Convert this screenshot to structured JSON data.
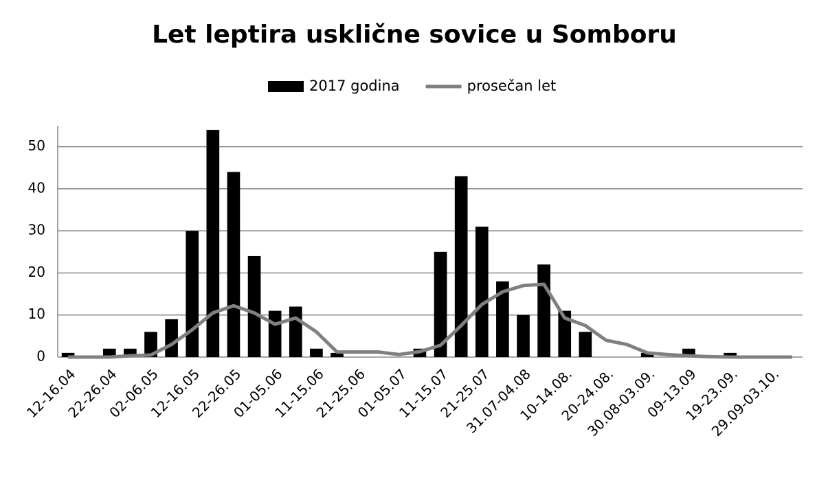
{
  "chart_data": {
    "type": "bar+line",
    "title": "Let leptira usklične sovice u Somboru",
    "categories": [
      "12-16.04",
      null,
      "22-26.04",
      null,
      "02-06.05",
      null,
      "12-16.05",
      null,
      "22-26.05",
      null,
      "01-05.06",
      null,
      "11-15.06",
      null,
      "21-25.06",
      null,
      "01-05.07",
      null,
      "11-15.07",
      null,
      "21-25.07",
      null,
      "31.07-04.08",
      null,
      "10-14.08.",
      null,
      "20-24.08.",
      null,
      "30.08-03.09.",
      null,
      "09-13.09",
      null,
      "19-23.09.",
      null,
      "29.09-03.10.",
      null
    ],
    "series": [
      {
        "name": "2017 godina",
        "type": "bar",
        "color": "#000000",
        "values": [
          1,
          0,
          2,
          2,
          6,
          9,
          30,
          54,
          44,
          24,
          11,
          12,
          2,
          1,
          0,
          0,
          0,
          2,
          25,
          43,
          31,
          18,
          10,
          22,
          11,
          6,
          0,
          0,
          1,
          0,
          2,
          0,
          1,
          0,
          0,
          0
        ]
      },
      {
        "name": "prosečan let",
        "type": "line",
        "color": "#808080",
        "values": [
          0,
          0,
          0,
          0.3,
          0.5,
          3,
          6.5,
          10.5,
          12.2,
          10.5,
          7.8,
          9.3,
          6,
          1.2,
          1.2,
          1.2,
          0.6,
          1.3,
          2.8,
          7.5,
          12.5,
          15.5,
          17,
          17.3,
          9.3,
          7.5,
          4,
          3,
          1,
          0.6,
          0.3,
          0.1,
          0,
          0,
          0,
          0
        ]
      }
    ],
    "ylim": [
      0,
      55
    ],
    "yticks": [
      0,
      10,
      20,
      30,
      40,
      50
    ],
    "grid": true,
    "legend": "top"
  }
}
